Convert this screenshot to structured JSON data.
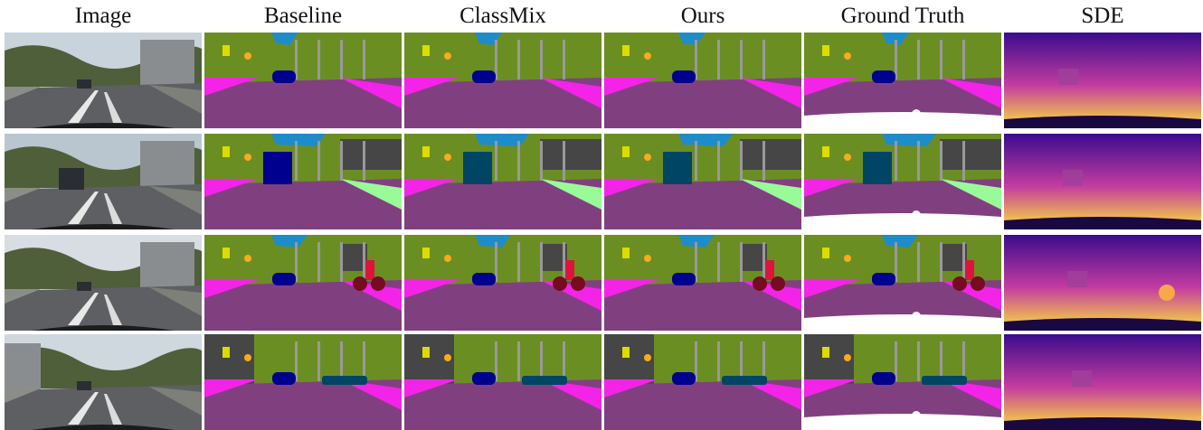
{
  "figure": {
    "columns": [
      "Image",
      "Baseline",
      "ClassMix",
      "Ours",
      "Ground Truth",
      "SDE"
    ],
    "rows": 4
  },
  "colors": {
    "road": "#804080",
    "sidewalk": "#f423e8",
    "building": "#464646",
    "vegetation": "#6b8e23",
    "sky": "#1e8cc8",
    "car": "#00008e",
    "truck": "#004664",
    "person": "#dc143c",
    "bicycle": "#770b20",
    "pole": "#999999",
    "traffic_sign": "#dcdc00",
    "traffic_light": "#faaa1e",
    "terrain": "#98fb98",
    "ignore": "#ffffff",
    "depth_far": "#3a0c8c",
    "depth_mid": "#c33ca0",
    "depth_near": "#fce438"
  }
}
